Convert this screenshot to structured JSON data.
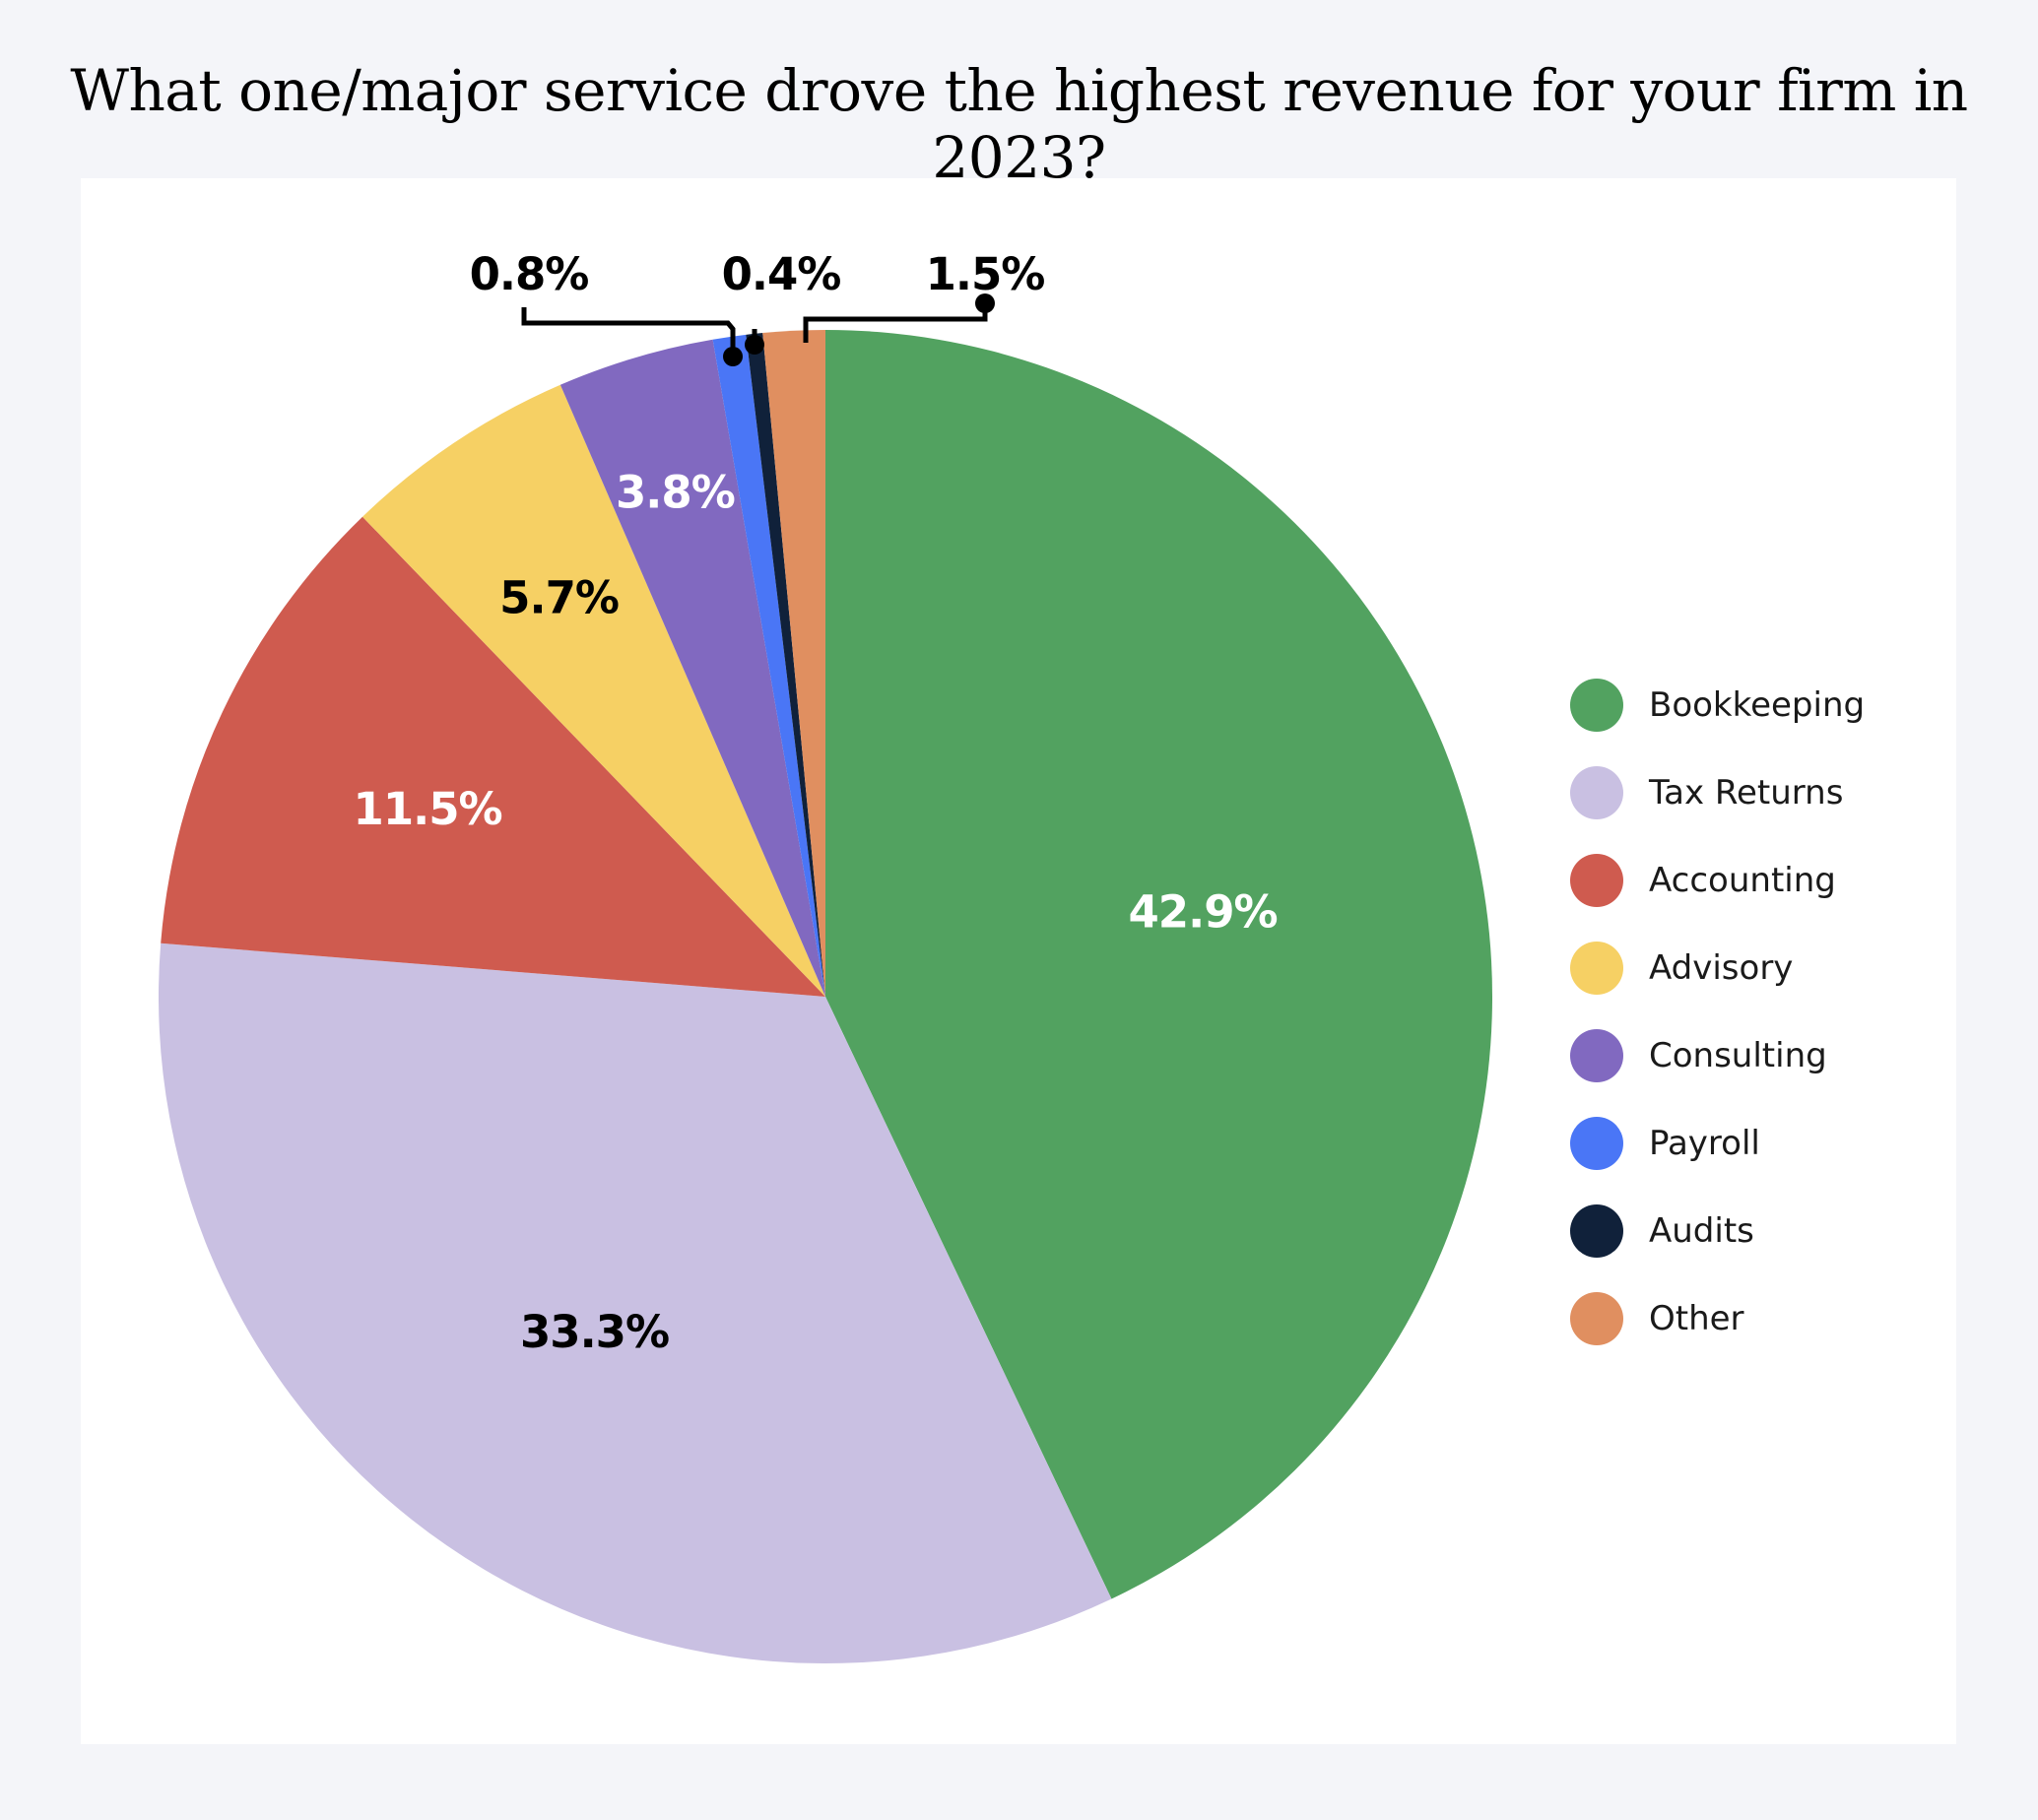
{
  "title": "What one/major service drove the highest revenue for your firm in 2023?",
  "chart_data": {
    "type": "pie",
    "title": "What one/major service drove the highest revenue for your firm in 2023?",
    "legend_position": "right",
    "slices": [
      {
        "name": "Bookkeeping",
        "value": 42.9,
        "label": "42.9%",
        "color": "#52a260",
        "label_color": "#ffffff"
      },
      {
        "name": "Tax Returns",
        "value": 33.3,
        "label": "33.3%",
        "color": "#c9c0e2",
        "label_color": "#000000"
      },
      {
        "name": "Accounting",
        "value": 11.5,
        "label": "11.5%",
        "color": "#cf5b4f",
        "label_color": "#ffffff"
      },
      {
        "name": "Advisory",
        "value": 5.7,
        "label": "5.7%",
        "color": "#f6d064",
        "label_color": "#000000"
      },
      {
        "name": "Consulting",
        "value": 3.8,
        "label": "3.8%",
        "color": "#8169c0",
        "label_color": "#ffffff"
      },
      {
        "name": "Payroll",
        "value": 0.8,
        "label": "0.8%",
        "color": "#4a76f6",
        "label_color": "#000000"
      },
      {
        "name": "Audits",
        "value": 0.4,
        "label": "0.4%",
        "color": "#10213a",
        "label_color": "#000000"
      },
      {
        "name": "Other",
        "value": 1.5,
        "label": "1.5%",
        "color": "#e08f60",
        "label_color": "#000000"
      }
    ]
  }
}
